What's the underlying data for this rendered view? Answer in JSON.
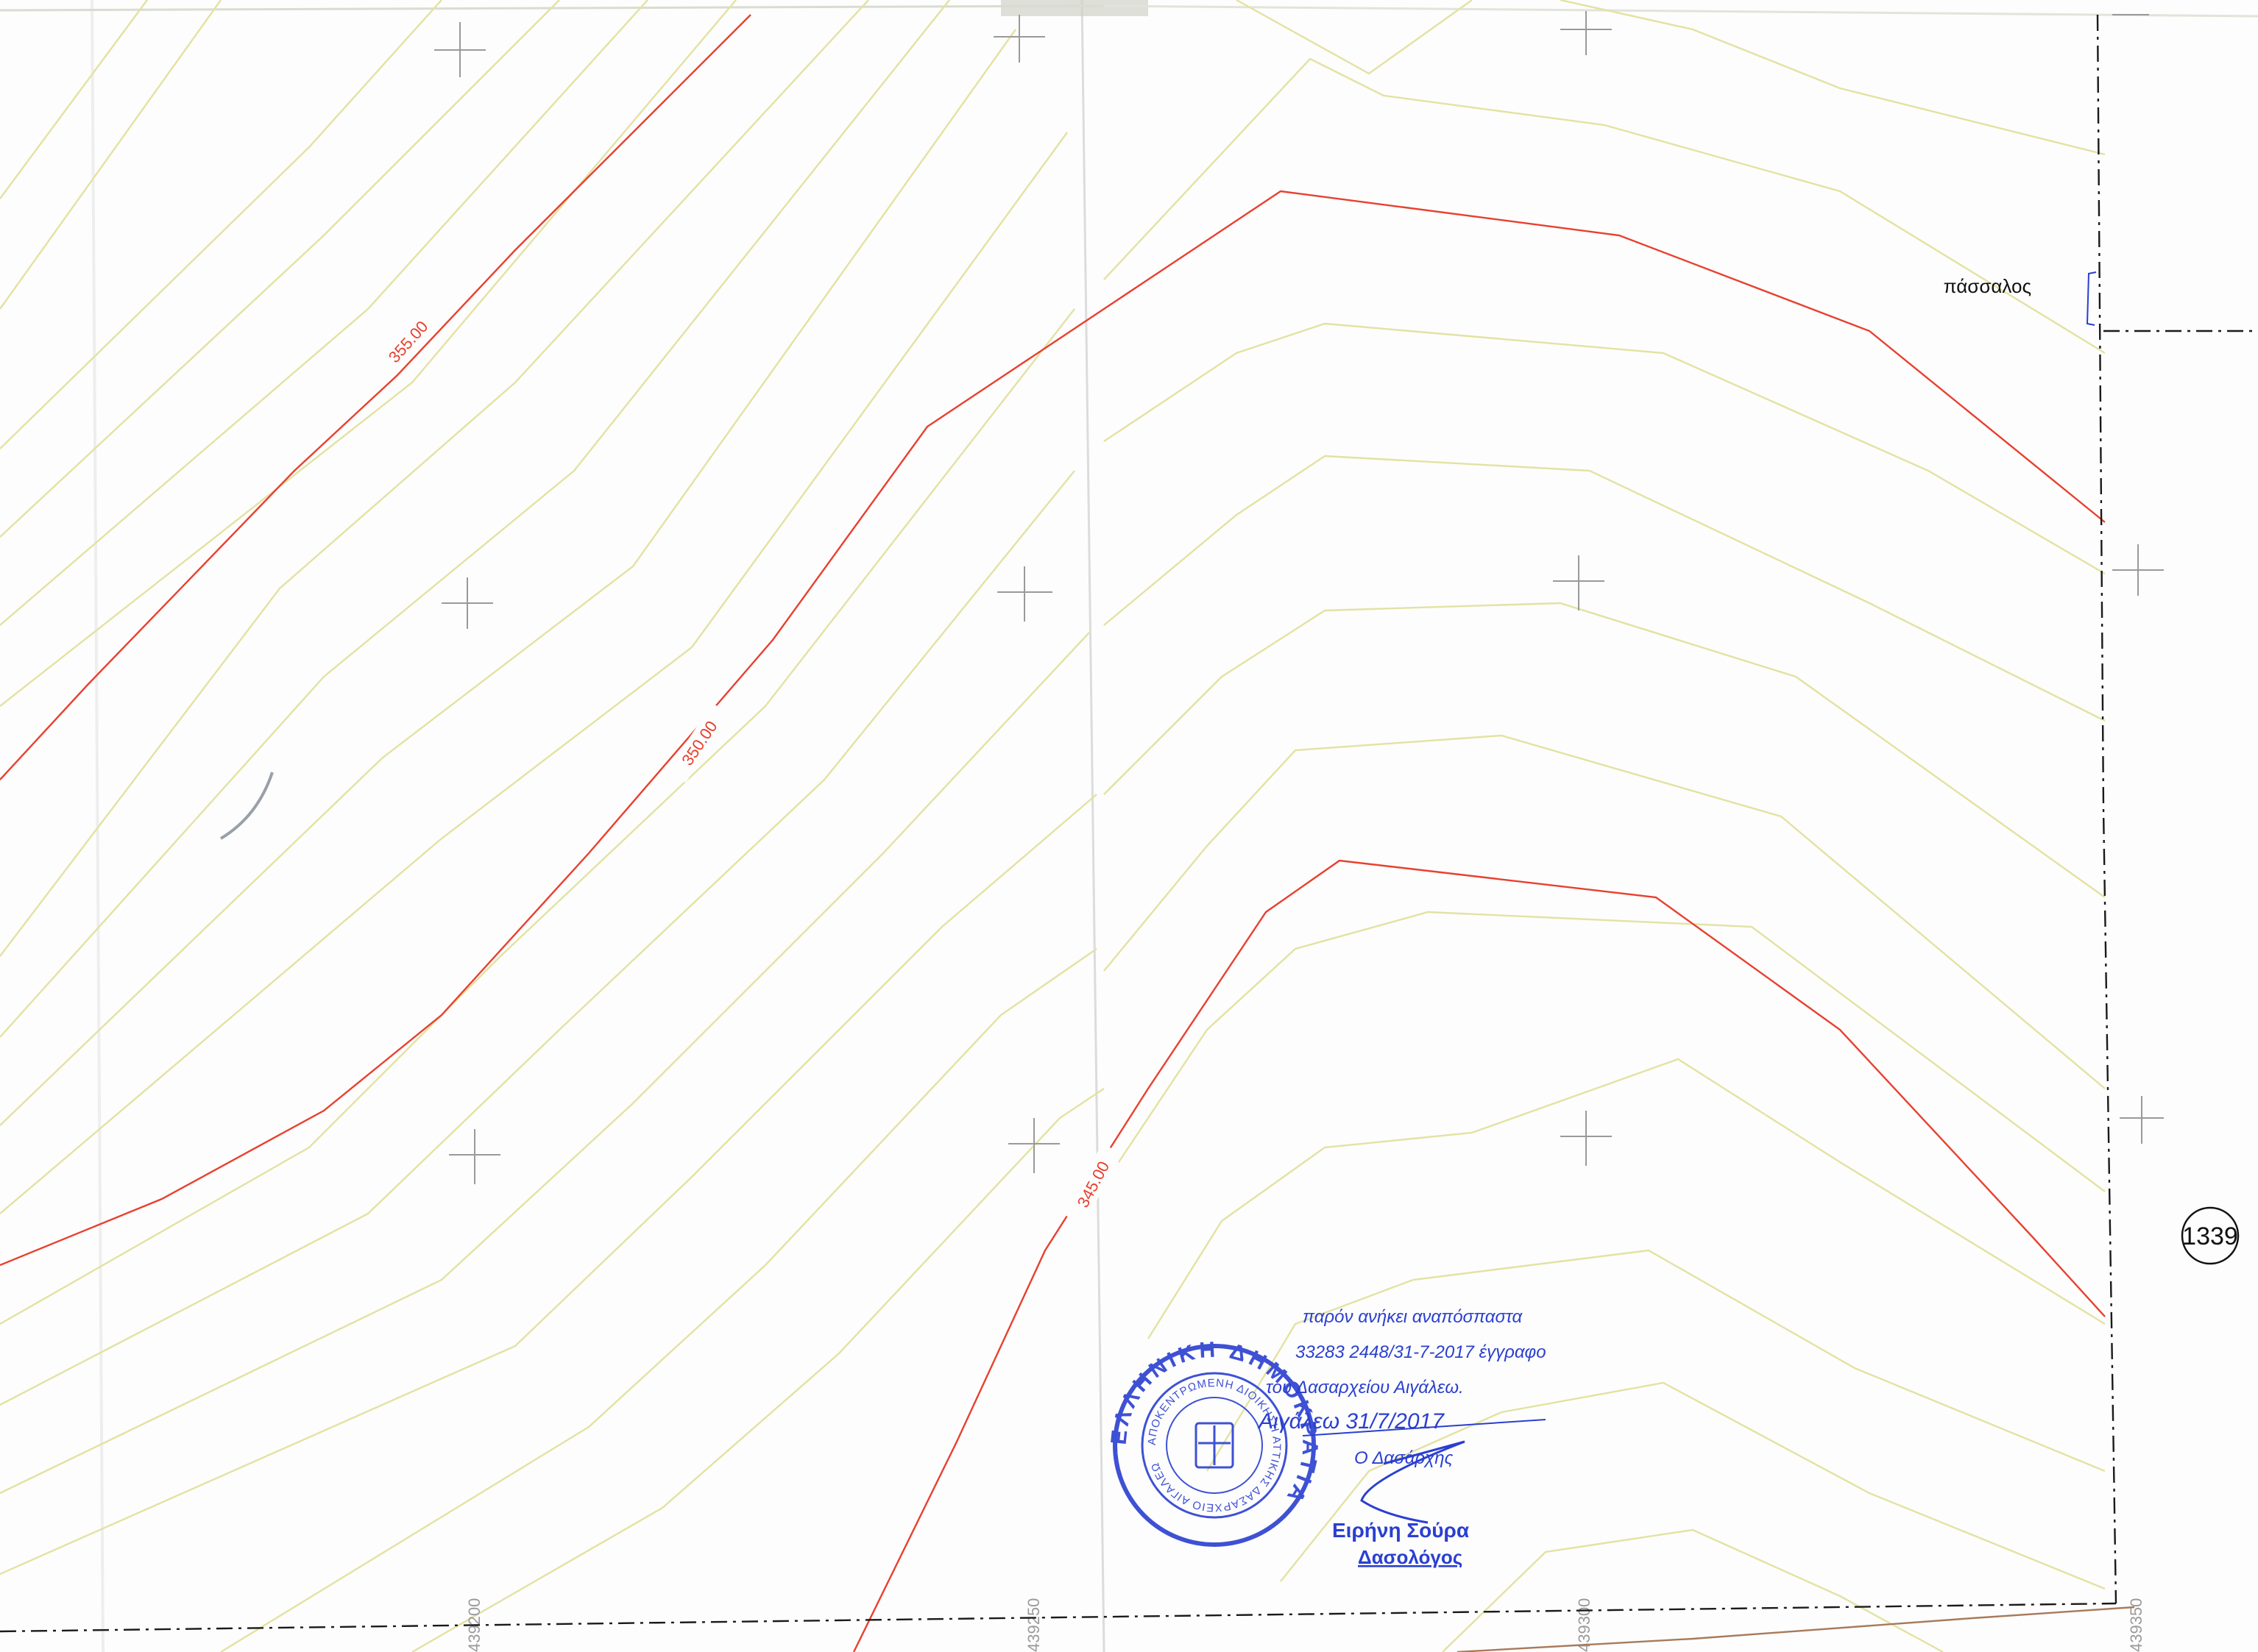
{
  "map": {
    "stake_label": "πάσσαλος",
    "parcel_number": "1339",
    "contour_labels": [
      "355.00",
      "350.00",
      "345.00"
    ],
    "grid_coordinates": [
      "439200",
      "439250",
      "439300",
      "439350"
    ],
    "colors": {
      "paper": "#fdfdfd",
      "index_contour": "#e8402f",
      "intermediate_contour": "#e3e2a2",
      "grid_cross": "#9a9a9a",
      "boundary_line": "#1a1a1a",
      "stamp_ink": "#2a3fd0",
      "brown_line": "#a87a5a"
    }
  },
  "stamp": {
    "seal_ring_text": "ΕΛΛΗΝΙΚΗ ΔΗΜΟΚΡΑΤΙΑ",
    "seal_inner_text": "ΑΠΟΚΕΝΤΡΩΜΕΝΗ ΔΙΟΙΚΗΣΗ ΑΤΤΙΚΗΣ ΔΑΣΑΡΧΕΙΟ ΑΙΓΑΛΕΩ",
    "line1": "παρόν ανήκει αναπόσπαστα",
    "line2": "33283 2448/31-7-2017 έγγραφο",
    "line3": "του Δασαρχείου Αιγάλεω.",
    "line4": "Αιγάλεω 31/7/2017",
    "line5": "Ο Δασάρχης",
    "signer_name": "Ειρήνη Σούρα",
    "signer_title": "Δασολόγος"
  }
}
